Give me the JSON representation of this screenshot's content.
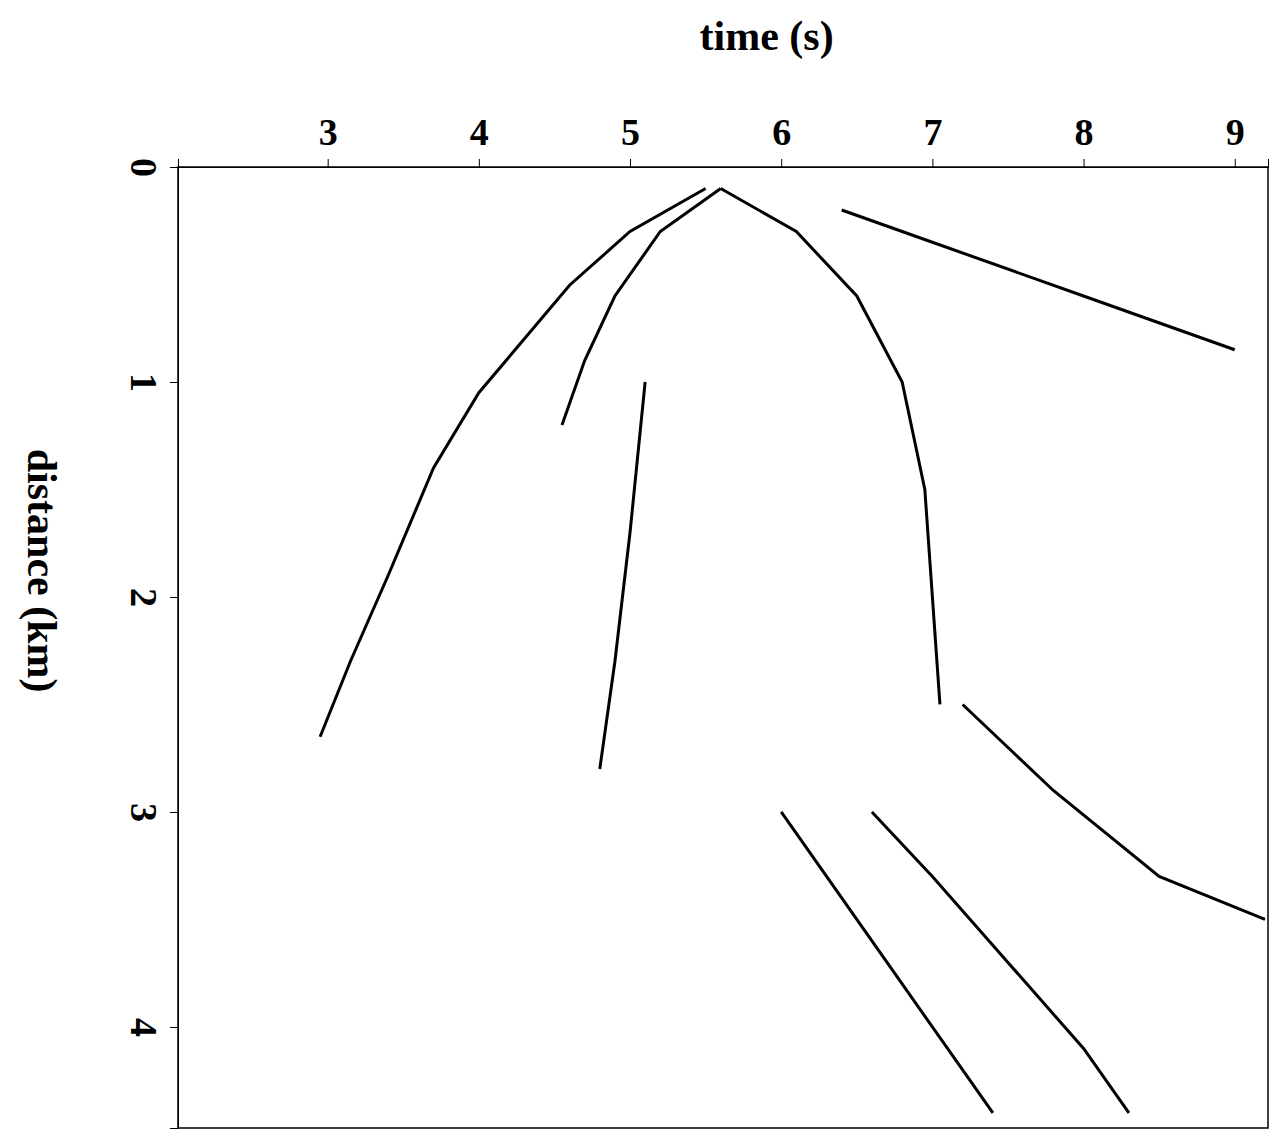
{
  "chart_data": {
    "type": "line",
    "x_label": "time  (s)",
    "y_label": "distance  (km)",
    "xlim": [
      2.01,
      9.22
    ],
    "ylim": [
      0,
      4.47
    ],
    "xticks": [
      3,
      4,
      5,
      6,
      7,
      8,
      9
    ],
    "yticks": [
      0,
      1,
      2,
      3,
      4
    ],
    "series": [
      {
        "color": "#000000",
        "x": [
          5.5,
          5.0,
          4.6,
          4.3,
          4.0,
          3.7,
          3.4,
          3.15,
          2.95
        ],
        "values": [
          0.1,
          0.3,
          0.55,
          0.8,
          1.05,
          1.4,
          1.9,
          2.3,
          2.65
        ]
      },
      {
        "color": "#000000",
        "x": [
          5.6,
          5.2,
          4.9,
          4.7,
          4.55
        ],
        "values": [
          0.1,
          0.3,
          0.6,
          0.9,
          1.2
        ]
      },
      {
        "color": "#000000",
        "x": [
          5.6,
          6.1,
          6.5,
          6.8,
          6.95,
          7.0,
          7.05
        ],
        "values": [
          0.1,
          0.3,
          0.6,
          1.0,
          1.5,
          2.0,
          2.5
        ]
      },
      {
        "color": "#000000",
        "x": [
          6.4,
          7.0,
          8.0,
          9.0
        ],
        "values": [
          0.2,
          0.35,
          0.6,
          0.85
        ]
      },
      {
        "color": "#000000",
        "x": [
          5.1,
          5.0,
          4.9,
          4.8
        ],
        "values": [
          1.0,
          1.7,
          2.3,
          2.8
        ]
      },
      {
        "color": "#000000",
        "x": [
          6.0,
          6.4,
          6.8,
          7.1,
          7.4
        ],
        "values": [
          3.0,
          3.4,
          3.8,
          4.1,
          4.4
        ]
      },
      {
        "color": "#000000",
        "x": [
          6.6,
          7.0,
          7.5,
          8.0,
          8.3
        ],
        "values": [
          3.0,
          3.3,
          3.7,
          4.1,
          4.4
        ]
      },
      {
        "color": "#000000",
        "x": [
          7.2,
          7.8,
          8.5,
          9.2
        ],
        "values": [
          2.5,
          2.9,
          3.3,
          3.5
        ]
      }
    ]
  }
}
